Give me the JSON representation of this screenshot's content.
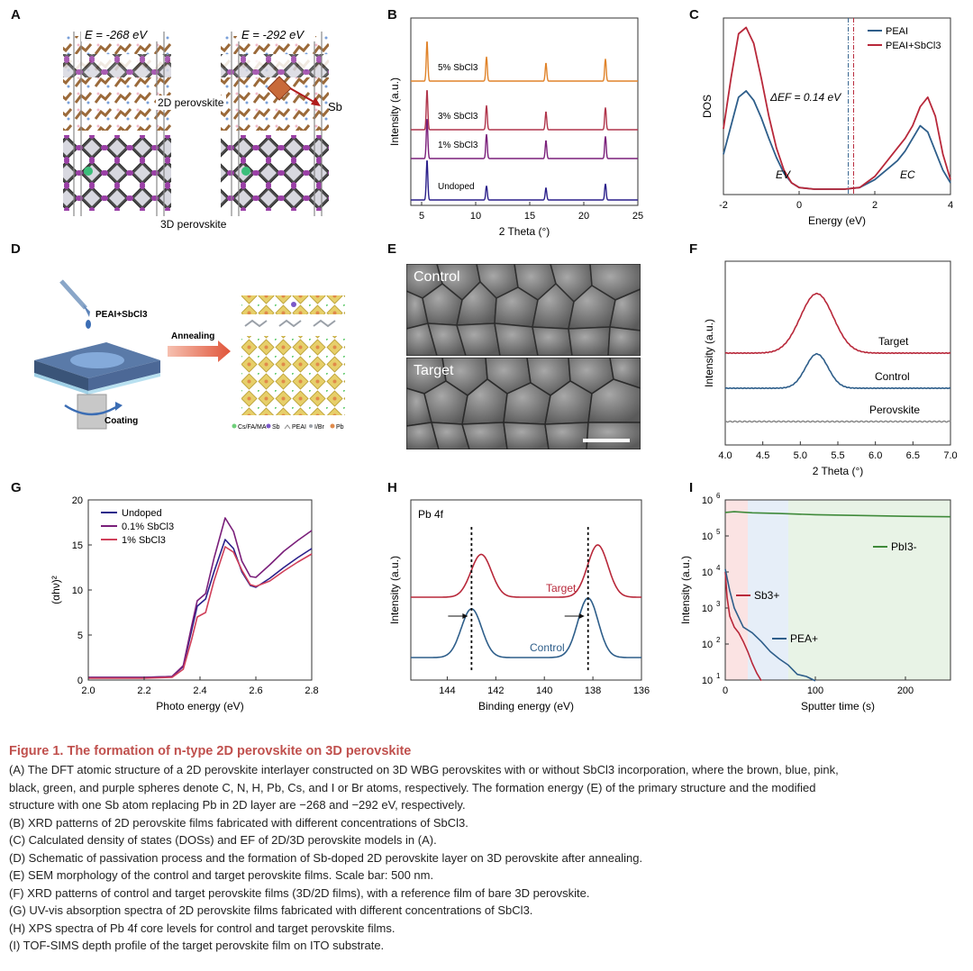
{
  "panels": {
    "A": {
      "letter": "A",
      "left_energy": "E = -268 eV",
      "right_energy": "E = -292 eV",
      "label_2d": "2D perovskite",
      "label_3d": "3D perovskite",
      "label_sb": "Sb"
    },
    "B": {
      "letter": "B",
      "traces": [
        "5% SbCl3",
        "3% SbCl3",
        "1% SbCl3",
        "Undoped"
      ],
      "colors": [
        "#e0832a",
        "#b0354b",
        "#7a1f7a",
        "#2a1f8a"
      ]
    },
    "C": {
      "letter": "C",
      "delta_ef": "ΔEF = 0.14 eV",
      "ev": "EV",
      "ec": "EC"
    },
    "D": {
      "letter": "D",
      "precursor": "PEAI+SbCl3",
      "step": "Annealing",
      "coating": "Coating",
      "legend": [
        "Cs/FA/MA",
        "Sb",
        "PEAI",
        "I/Br",
        "Pb"
      ]
    },
    "E": {
      "letter": "E",
      "top": "Control",
      "bottom": "Target"
    },
    "F": {
      "letter": "F",
      "labels": [
        "Target",
        "Control",
        "Perovskite"
      ]
    },
    "G": {
      "letter": "G"
    },
    "H": {
      "letter": "H",
      "core_level": "Pb 4f",
      "labels": [
        "Target",
        "Control"
      ]
    },
    "I": {
      "letter": "I",
      "labels": [
        "PbI3-",
        "Sb3+",
        "PEA+"
      ]
    }
  },
  "chart_data": [
    {
      "panel": "B",
      "type": "line",
      "xlabel": "2 Theta (°)",
      "ylabel": "Intensity (a.u.)",
      "xlim": [
        4,
        25
      ],
      "xticks": [
        5,
        10,
        15,
        20,
        25
      ],
      "peaks": [
        5.5,
        11.0,
        16.5,
        22.0
      ],
      "series": [
        {
          "name": "5% SbCl3",
          "color": "#e0832a",
          "peak_heights": [
            1.0,
            0.6,
            0.45,
            0.55
          ]
        },
        {
          "name": "3% SbCl3",
          "color": "#b0354b",
          "peak_heights": [
            1.0,
            0.6,
            0.45,
            0.55
          ]
        },
        {
          "name": "1% SbCl3",
          "color": "#7a1f7a",
          "peak_heights": [
            1.0,
            0.6,
            0.45,
            0.55
          ]
        },
        {
          "name": "Undoped",
          "color": "#2a1f8a",
          "peak_heights": [
            1.0,
            0.35,
            0.3,
            0.4
          ]
        }
      ]
    },
    {
      "panel": "C",
      "type": "line",
      "xlabel": "Energy (eV)",
      "ylabel": "DOS",
      "xlim": [
        -2,
        4
      ],
      "xticks": [
        -2,
        0,
        2,
        4
      ],
      "fermi_levels": [
        1.3,
        1.44
      ],
      "legend_position": "top-right",
      "series": [
        {
          "name": "PEAI",
          "color": "#2e5e8a",
          "x": [
            -2.0,
            -1.8,
            -1.6,
            -1.4,
            -1.2,
            -1.0,
            -0.8,
            -0.6,
            -0.4,
            -0.2,
            0.0,
            0.4,
            0.8,
            1.2,
            1.6,
            2.0,
            2.2,
            2.4,
            2.6,
            2.8,
            3.0,
            3.2,
            3.4,
            3.6,
            3.8,
            4.0
          ],
          "y": [
            0.22,
            0.4,
            0.58,
            0.62,
            0.56,
            0.45,
            0.32,
            0.2,
            0.1,
            0.04,
            0.01,
            0.0,
            0.0,
            0.0,
            0.01,
            0.06,
            0.1,
            0.14,
            0.18,
            0.24,
            0.32,
            0.4,
            0.36,
            0.24,
            0.12,
            0.04
          ]
        },
        {
          "name": "PEAI+SbCl3",
          "color": "#b8283a",
          "x": [
            -2.0,
            -1.8,
            -1.6,
            -1.4,
            -1.2,
            -1.0,
            -0.8,
            -0.6,
            -0.4,
            -0.2,
            0.0,
            0.4,
            0.8,
            1.2,
            1.6,
            2.0,
            2.2,
            2.4,
            2.6,
            2.8,
            3.0,
            3.2,
            3.4,
            3.6,
            3.8,
            4.0
          ],
          "y": [
            0.38,
            0.7,
            0.98,
            1.02,
            0.92,
            0.7,
            0.46,
            0.26,
            0.12,
            0.04,
            0.01,
            0.0,
            0.0,
            0.0,
            0.01,
            0.08,
            0.14,
            0.2,
            0.26,
            0.32,
            0.4,
            0.52,
            0.58,
            0.46,
            0.22,
            0.06
          ]
        }
      ]
    },
    {
      "panel": "F",
      "type": "line",
      "xlabel": "2 Theta (°)",
      "ylabel": "Intensity (a.u.)",
      "xlim": [
        4.0,
        7.0
      ],
      "xticks": [
        4.0,
        4.5,
        5.0,
        5.5,
        6.0,
        6.5,
        7.0
      ],
      "series": [
        {
          "name": "Target",
          "color": "#b8283a",
          "peak_center": 5.22,
          "peak_height": 0.66,
          "peak_width": 0.22
        },
        {
          "name": "Control",
          "color": "#2e5e8a",
          "peak_center": 5.22,
          "peak_height": 0.38,
          "peak_width": 0.15
        },
        {
          "name": "Perovskite",
          "color": "#8c8c8c",
          "peak_center": 5.22,
          "peak_height": 0.0,
          "peak_width": 0.2
        }
      ]
    },
    {
      "panel": "G",
      "type": "line",
      "xlabel": "Photo energy (eV)",
      "ylabel": "(αhν)²",
      "xlim": [
        2.0,
        2.8
      ],
      "ylim": [
        0,
        20
      ],
      "xticks": [
        2.0,
        2.2,
        2.4,
        2.6,
        2.8
      ],
      "yticks": [
        0,
        5,
        10,
        15,
        20
      ],
      "legend_position": "top-left",
      "series": [
        {
          "name": "Undoped",
          "color": "#2a1f8a",
          "x": [
            2.0,
            2.1,
            2.2,
            2.3,
            2.34,
            2.37,
            2.39,
            2.42,
            2.45,
            2.49,
            2.52,
            2.55,
            2.58,
            2.6,
            2.65,
            2.7,
            2.75,
            2.8
          ],
          "y": [
            0.3,
            0.3,
            0.3,
            0.4,
            1.5,
            5.5,
            8.2,
            9.0,
            12.0,
            15.6,
            14.6,
            12.0,
            10.5,
            10.3,
            11.3,
            12.5,
            13.6,
            14.6
          ]
        },
        {
          "name": "0.1% SbCl3",
          "color": "#7a1f7a",
          "x": [
            2.0,
            2.1,
            2.2,
            2.3,
            2.34,
            2.37,
            2.39,
            2.42,
            2.45,
            2.49,
            2.52,
            2.55,
            2.58,
            2.6,
            2.65,
            2.7,
            2.75,
            2.8
          ],
          "y": [
            0.3,
            0.3,
            0.3,
            0.4,
            1.6,
            6.0,
            8.8,
            9.6,
            13.5,
            18.0,
            16.5,
            13.2,
            11.5,
            11.4,
            12.8,
            14.3,
            15.5,
            16.6
          ]
        },
        {
          "name": "1% SbCl3",
          "color": "#d0405a",
          "x": [
            2.0,
            2.1,
            2.2,
            2.3,
            2.34,
            2.37,
            2.39,
            2.42,
            2.45,
            2.49,
            2.52,
            2.55,
            2.58,
            2.6,
            2.65,
            2.7,
            2.75,
            2.8
          ],
          "y": [
            0.2,
            0.2,
            0.2,
            0.3,
            1.2,
            4.5,
            7.0,
            7.5,
            11.0,
            14.8,
            14.2,
            12.2,
            10.6,
            10.4,
            11.0,
            12.1,
            13.1,
            14.0
          ]
        }
      ]
    },
    {
      "panel": "H",
      "type": "line",
      "xlabel": "Binding energy (eV)",
      "ylabel": "Intensity (a.u.)",
      "xlim": [
        145.5,
        136.0
      ],
      "xticks": [
        144,
        142,
        140,
        138,
        136
      ],
      "reference_lines": [
        143.0,
        138.2
      ],
      "series": [
        {
          "name": "Target",
          "color": "#b8283a",
          "peaks": [
            142.6,
            137.8
          ]
        },
        {
          "name": "Control",
          "color": "#2e5e8a",
          "peaks": [
            143.0,
            138.2
          ]
        }
      ]
    },
    {
      "panel": "I",
      "type": "line",
      "xlabel": "Sputter time (s)",
      "ylabel": "Intensity (a.u.)",
      "xlim": [
        0,
        250
      ],
      "ylim_log": [
        1,
        6
      ],
      "xticks": [
        0,
        100,
        200
      ],
      "series": [
        {
          "name": "PbI3-",
          "color": "#3f8a3a",
          "x": [
            0,
            10,
            30,
            60,
            100,
            150,
            200,
            250
          ],
          "y": [
            450000,
            470000,
            440000,
            420000,
            390000,
            370000,
            350000,
            340000
          ]
        },
        {
          "name": "Sb3+",
          "color": "#b8283a",
          "x": [
            0,
            2,
            5,
            10,
            15,
            20,
            25,
            30,
            35,
            40
          ],
          "y": [
            10000,
            2000,
            600,
            300,
            200,
            120,
            60,
            30,
            15,
            10
          ]
        },
        {
          "name": "PEA+",
          "color": "#2e5e8a",
          "x": [
            0,
            5,
            10,
            20,
            30,
            40,
            50,
            60,
            70,
            80,
            90,
            100
          ],
          "y": [
            12000,
            3000,
            1000,
            300,
            200,
            120,
            60,
            40,
            25,
            15,
            12,
            10
          ]
        }
      ]
    }
  ],
  "caption": {
    "title": "Figure 1.  The formation of n-type 2D perovskite on 3D perovskite",
    "lines": [
      "(A) The DFT atomic structure of a 2D perovskite interlayer constructed on 3D WBG perovskites with or without SbCl3 incorporation, where the brown, blue, pink,",
      "black, green, and purple spheres denote C, N, H, Pb, Cs, and I or Br atoms, respectively. The formation energy (E) of the primary structure and the modified",
      "structure with one Sb atom replacing Pb in 2D layer are −268 and −292 eV, respectively.",
      "(B) XRD patterns of 2D perovskite films fabricated with different concentrations of SbCl3.",
      "(C) Calculated density of states (DOSs) and EF of 2D/3D perovskite models in (A).",
      "(D) Schematic of passivation process and the formation of Sb-doped 2D perovskite layer on 3D perovskite after annealing.",
      "(E) SEM morphology of the control and target perovskite films. Scale bar: 500 nm.",
      "(F) XRD patterns of control and target perovskite films (3D/2D films), with a reference film of bare 3D perovskite.",
      "(G) UV-vis absorption spectra of 2D perovskite films fabricated with different concentrations of SbCl3.",
      "(H) XPS spectra of Pb 4f core levels for control and target perovskite films.",
      "(I) TOF-SIMS depth profile of the target perovskite film on ITO substrate."
    ]
  }
}
